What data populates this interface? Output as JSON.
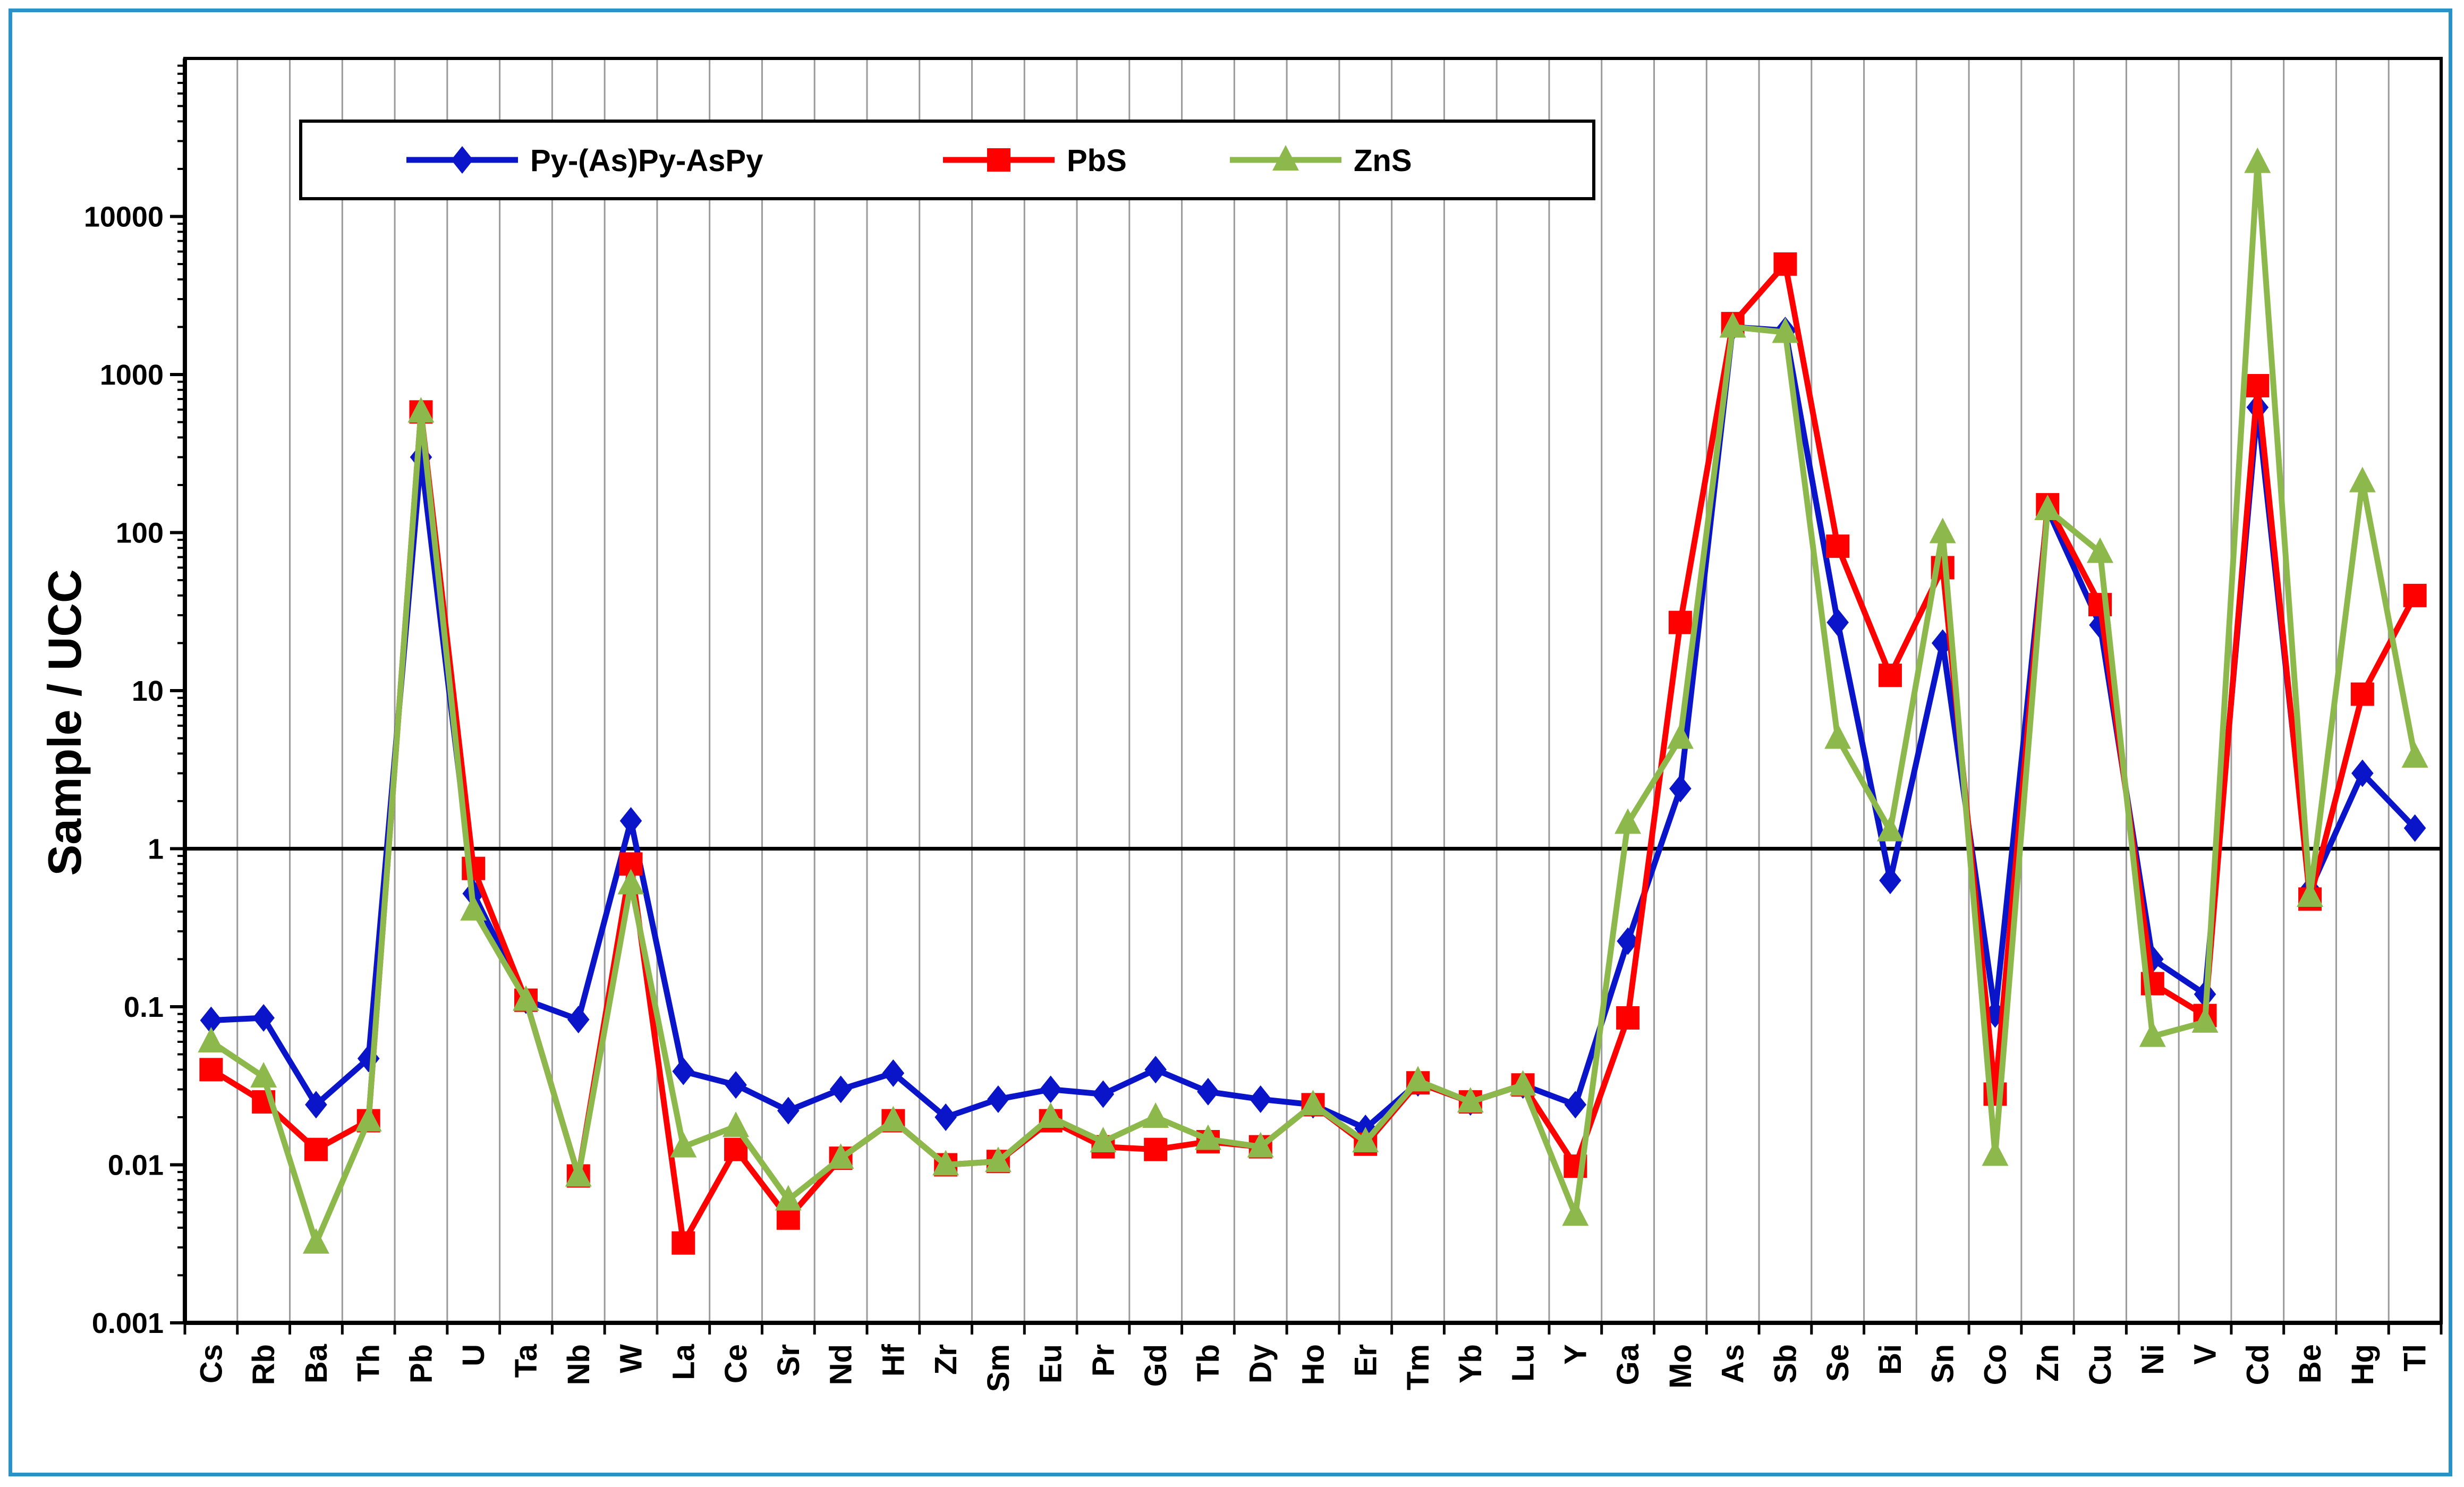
{
  "chart_data": {
    "type": "line",
    "ylabel": "Sample / UCC",
    "yscale": "log",
    "ylim": [
      0.001,
      100000
    ],
    "yticks": [
      0.001,
      0.01,
      0.1,
      1,
      10,
      100,
      1000,
      10000
    ],
    "ytick_labels": [
      "0.001",
      "0.01",
      "0.1",
      "1",
      "10",
      "100",
      "1000",
      "10000"
    ],
    "reference_line": 1,
    "grid": "vertical",
    "legend_position": "top-left",
    "categories": [
      "Cs",
      "Rb",
      "Ba",
      "Th",
      "Pb",
      "U",
      "Ta",
      "Nb",
      "W",
      "La",
      "Ce",
      "Sr",
      "Nd",
      "Hf",
      "Zr",
      "Sm",
      "Eu",
      "Pr",
      "Gd",
      "Tb",
      "Dy",
      "Ho",
      "Er",
      "Tm",
      "Yb",
      "Lu",
      "Y",
      "Ga",
      "Mo",
      "As",
      "Sb",
      "Se",
      "Bi",
      "Sn",
      "Co",
      "Zn",
      "Cu",
      "Ni",
      "V",
      "Cd",
      "Be",
      "Hg",
      "Tl"
    ],
    "series": [
      {
        "name": "Py-(As)Py-AsPy",
        "color": "#0a14c8",
        "marker": "diamond",
        "values": [
          0.082,
          0.085,
          0.024,
          0.047,
          300,
          0.52,
          0.11,
          0.083,
          1.5,
          0.039,
          0.032,
          0.022,
          0.03,
          0.038,
          0.02,
          0.026,
          0.03,
          0.028,
          0.04,
          0.029,
          0.026,
          0.024,
          0.017,
          0.033,
          0.025,
          0.032,
          0.024,
          0.26,
          2.4,
          2000,
          1900,
          27,
          0.63,
          20,
          0.09,
          140,
          26,
          0.2,
          0.12,
          620,
          0.55,
          3,
          1.35
        ]
      },
      {
        "name": "PbS",
        "color": "#ff0000",
        "marker": "square",
        "values": [
          0.04,
          0.025,
          0.0125,
          0.019,
          580,
          0.75,
          0.11,
          0.0085,
          0.8,
          0.0032,
          0.0125,
          0.0046,
          0.011,
          0.019,
          0.01,
          0.0105,
          0.019,
          0.013,
          0.0125,
          0.014,
          0.013,
          0.024,
          0.0135,
          0.033,
          0.025,
          0.032,
          0.0098,
          0.085,
          27,
          2100,
          5000,
          82,
          12.5,
          60,
          0.028,
          150,
          35,
          0.14,
          0.088,
          850,
          0.48,
          9.5,
          40
        ]
      },
      {
        "name": "ZnS",
        "color": "#8cb84c",
        "marker": "triangle",
        "values": [
          0.06,
          0.036,
          0.0032,
          0.019,
          580,
          0.41,
          0.11,
          0.0085,
          0.6,
          0.013,
          0.0175,
          0.006,
          0.011,
          0.019,
          0.01,
          0.0105,
          0.02,
          0.014,
          0.02,
          0.0145,
          0.013,
          0.024,
          0.014,
          0.034,
          0.025,
          0.032,
          0.0048,
          1.45,
          5,
          2000,
          1850,
          5,
          1.3,
          100,
          0.0115,
          140,
          75,
          0.065,
          0.08,
          22000,
          0.5,
          210,
          3.8
        ]
      }
    ]
  }
}
